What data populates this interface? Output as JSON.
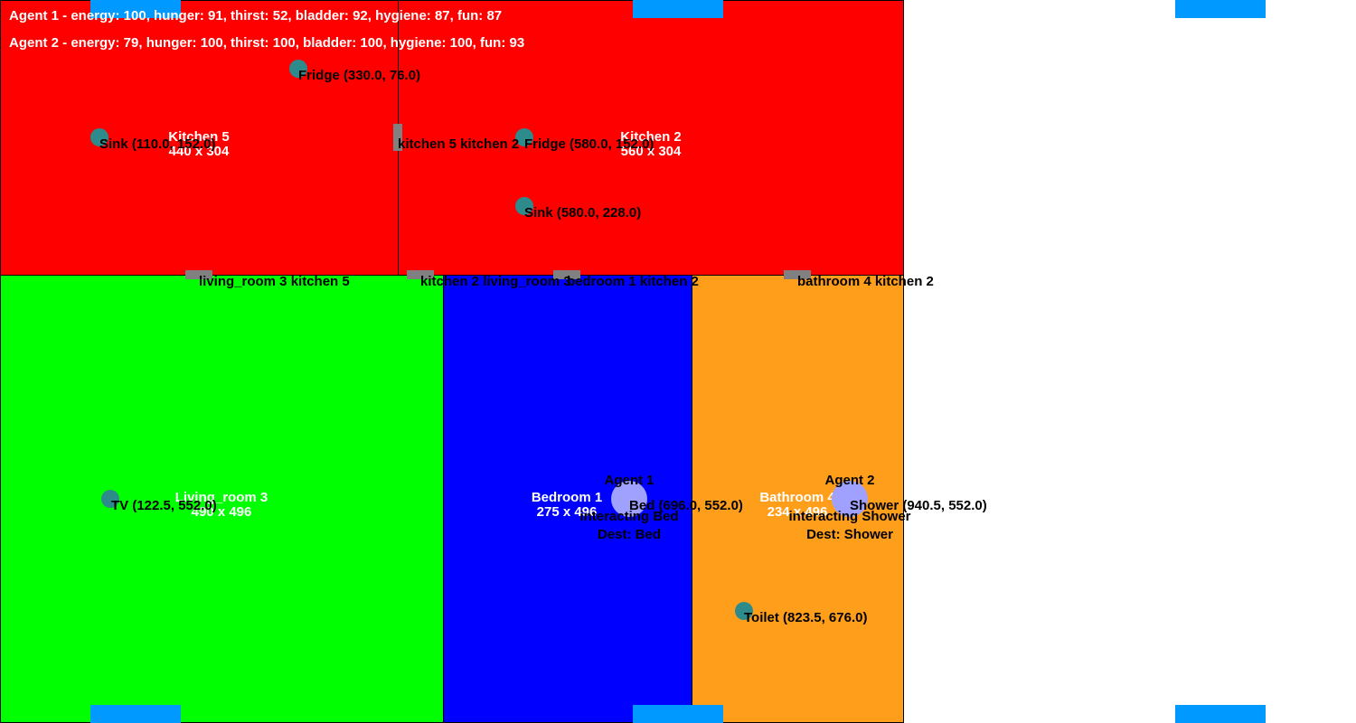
{
  "hud": {
    "agent1": "Agent 1 - energy: 100, hunger: 91, thirst: 52, bladder: 92, hygiene: 87, fun: 87",
    "agent2": "Agent 2 - energy: 79, hunger: 100, thirst: 100, bladder: 100, hygiene: 100, fun: 93"
  },
  "agents_stats": [
    {
      "name": "Agent 1",
      "energy": 100,
      "hunger": 91,
      "thirst": 52,
      "bladder": 92,
      "hygiene": 87,
      "fun": 87
    },
    {
      "name": "Agent 2",
      "energy": 79,
      "hunger": 100,
      "thirst": 100,
      "bladder": 100,
      "hygiene": 100,
      "fun": 93
    }
  ],
  "colors": {
    "kitchen": "#ff0000",
    "living_room": "#00ff00",
    "bedroom": "#0000ff",
    "bathroom": "#ff9e1a",
    "window": "#0099ff",
    "door": "#808080",
    "object": "#2e8b8b",
    "agent": "#a0a0ff"
  },
  "rooms": {
    "kitchen5": {
      "name": "Kitchen 5",
      "size": "440 x 304"
    },
    "kitchen2": {
      "name": "Kitchen 2",
      "size": "560 x 304"
    },
    "living_room3": {
      "name": "Living_room 3",
      "size": "490 x 496"
    },
    "bedroom1": {
      "name": "Bedroom 1",
      "size": "275 x 496"
    },
    "bathroom4": {
      "name": "Bathroom 4",
      "size": "234 x 496"
    }
  },
  "doors": {
    "kitchen5_kitchen2": "kitchen 5 kitchen 2",
    "living_room3_kitchen5": "living_room 3 kitchen 5",
    "kitchen2_living_room3": "kitchen 2 living_room 3",
    "bedroom1_kitchen2": "bedroom 1 kitchen 2",
    "bathroom4_kitchen2": "bathroom 4 kitchen 2"
  },
  "objects": {
    "fridge_k5": "Fridge (330.0, 76.0)",
    "sink_k5": "Sink (110.0, 152.0)",
    "fridge_k2": "Fridge (580.0, 152.0)",
    "sink_k2": "Sink (580.0, 228.0)",
    "tv": "TV (122.5, 552.0)",
    "bed": "Bed (696.0, 552.0)",
    "shower": "Shower (940.5, 552.0)",
    "toilet": "Toilet (823.5, 676.0)"
  },
  "agents": {
    "agent1": {
      "name": "Agent 1",
      "status": "interacting Bed",
      "dest": "Dest: Bed"
    },
    "agent2": {
      "name": "Agent 2",
      "status": "interacting Shower",
      "dest": "Dest: Shower"
    }
  }
}
